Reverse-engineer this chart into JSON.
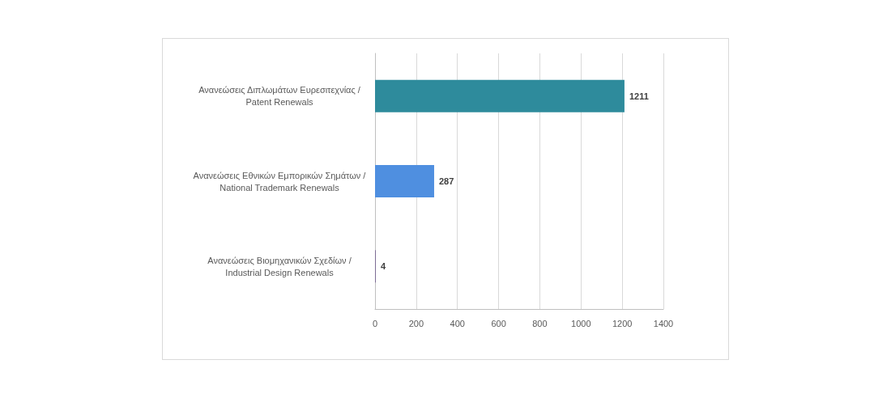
{
  "chart_data": {
    "type": "bar",
    "orientation": "horizontal",
    "categories": [
      "Ανανεώσεις Διπλωμάτων Ευρεσιτεχνίας / Patent Renewals",
      "Ανανεώσεις Εθνικών Εμπορικών Σημάτων / National Trademark Renewals",
      "Ανανεώσεις Βιομηχανικών Σχεδίων / Industrial Design Renewals"
    ],
    "values": [
      1211,
      287,
      4
    ],
    "colors": [
      "#2e8b9c",
      "#4f8fe0",
      "#7e6e96"
    ],
    "xlim": [
      0,
      1400
    ],
    "xticks": [
      0,
      200,
      400,
      600,
      800,
      1000,
      1200,
      1400
    ],
    "grid": "x",
    "data_labels": true
  }
}
